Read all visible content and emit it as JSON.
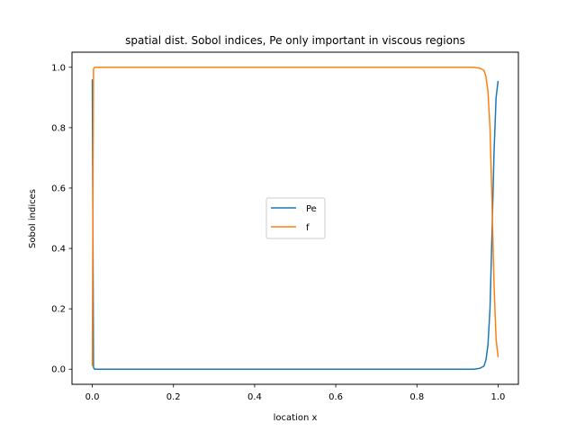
{
  "chart_data": {
    "type": "line",
    "title": "spatial dist. Sobol indices, Pe only important in viscous regions",
    "xlabel": "location x",
    "ylabel": "Sobol indices",
    "xlim": [
      -0.05,
      1.05
    ],
    "ylim": [
      -0.05,
      1.05
    ],
    "xticks": [
      0.0,
      0.2,
      0.4,
      0.6,
      0.8,
      1.0
    ],
    "xtick_labels": [
      "0.0",
      "0.2",
      "0.4",
      "0.6",
      "0.8",
      "1.0"
    ],
    "yticks": [
      0.0,
      0.2,
      0.4,
      0.6,
      0.8,
      1.0
    ],
    "ytick_labels": [
      "0.0",
      "0.2",
      "0.4",
      "0.6",
      "0.8",
      "1.0"
    ],
    "grid": false,
    "legend_position": "center",
    "series": [
      {
        "name": "Pe",
        "color": "#1f77b4",
        "x": [
          0.0,
          0.003,
          0.006,
          0.5,
          0.94,
          0.955,
          0.965,
          0.97,
          0.975,
          0.98,
          0.985,
          0.99,
          0.995,
          1.0
        ],
        "y": [
          0.96,
          0.005,
          0.0,
          0.0,
          0.0,
          0.003,
          0.01,
          0.03,
          0.08,
          0.2,
          0.45,
          0.72,
          0.9,
          0.955
        ]
      },
      {
        "name": "f",
        "color": "#ff7f0e",
        "x": [
          0.0,
          0.003,
          0.006,
          0.5,
          0.94,
          0.955,
          0.965,
          0.97,
          0.975,
          0.98,
          0.985,
          0.99,
          0.995,
          1.0
        ],
        "y": [
          0.01,
          0.995,
          1.0,
          1.0,
          1.0,
          0.997,
          0.99,
          0.97,
          0.92,
          0.8,
          0.55,
          0.28,
          0.1,
          0.04
        ]
      }
    ]
  }
}
